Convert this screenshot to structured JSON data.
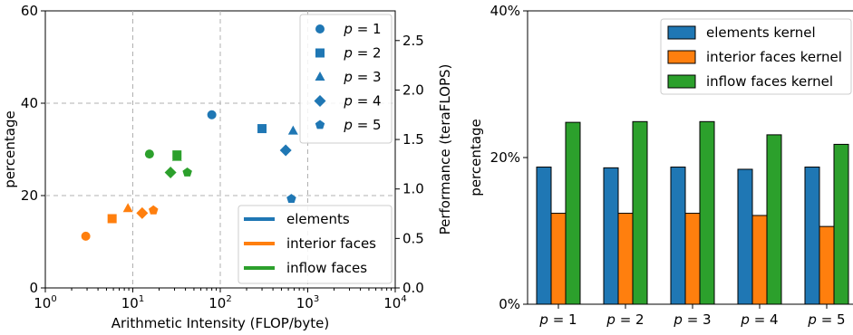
{
  "chart_data": [
    {
      "type": "scatter",
      "xlabel": "Arithmetic Intensity (FLOP/byte)",
      "ylabel": "percentage",
      "y2label": "Performance (teraFLOPS)",
      "xscale": "log",
      "xlim": [
        1,
        10000
      ],
      "ylim": [
        0,
        60
      ],
      "y2lim": [
        0,
        2.8
      ],
      "xticks": [
        {
          "value": 1,
          "mant": "10",
          "exp": "0"
        },
        {
          "value": 10,
          "mant": "10",
          "exp": "1"
        },
        {
          "value": 100,
          "mant": "10",
          "exp": "2"
        },
        {
          "value": 1000,
          "mant": "10",
          "exp": "3"
        },
        {
          "value": 10000,
          "mant": "10",
          "exp": "4"
        }
      ],
      "yticks": [
        {
          "value": 0,
          "label": "0"
        },
        {
          "value": 20,
          "label": "20"
        },
        {
          "value": 40,
          "label": "40"
        },
        {
          "value": 60,
          "label": "60"
        }
      ],
      "y2ticks": [
        {
          "value": 0.0,
          "label": "0.0"
        },
        {
          "value": 0.5,
          "label": "0.5"
        },
        {
          "value": 1.0,
          "label": "1.0"
        },
        {
          "value": 1.5,
          "label": "1.5"
        },
        {
          "value": 2.0,
          "label": "2.0"
        },
        {
          "value": 2.5,
          "label": "2.5"
        }
      ],
      "grid": true,
      "marker_legend": {
        "placement": "top-right",
        "entries": [
          {
            "label": "p = 1",
            "marker": "circle"
          },
          {
            "label": "p = 2",
            "marker": "square"
          },
          {
            "label": "p = 3",
            "marker": "triangle"
          },
          {
            "label": "p = 4",
            "marker": "diamond"
          },
          {
            "label": "p = 5",
            "marker": "pentagon"
          }
        ]
      },
      "color_legend": {
        "placement": "bottom-right",
        "entries": [
          {
            "label": "elements",
            "color": "#1f77b4"
          },
          {
            "label": "interior faces",
            "color": "#ff7f0e"
          },
          {
            "label": "inflow faces",
            "color": "#2ca02c"
          }
        ]
      },
      "series": [
        {
          "name": "elements",
          "color": "#1f77b4",
          "points": [
            {
              "p": 1,
              "x": 80,
              "y": 37.5
            },
            {
              "p": 2,
              "x": 300,
              "y": 34.5
            },
            {
              "p": 3,
              "x": 680,
              "y": 34
            },
            {
              "p": 4,
              "x": 560,
              "y": 29.8
            },
            {
              "p": 5,
              "x": 650,
              "y": 19.3
            }
          ]
        },
        {
          "name": "interior faces",
          "color": "#ff7f0e",
          "points": [
            {
              "p": 1,
              "x": 2.9,
              "y": 11.2
            },
            {
              "p": 2,
              "x": 5.8,
              "y": 15
            },
            {
              "p": 3,
              "x": 8.8,
              "y": 17.2
            },
            {
              "p": 4,
              "x": 12.8,
              "y": 16.2
            },
            {
              "p": 5,
              "x": 17.2,
              "y": 16.8
            }
          ]
        },
        {
          "name": "inflow faces",
          "color": "#2ca02c",
          "points": [
            {
              "p": 1,
              "x": 15.5,
              "y": 29
            },
            {
              "p": 2,
              "x": 32,
              "y": 28.8
            },
            {
              "p": 3,
              "x": 32,
              "y": 28.3
            },
            {
              "p": 4,
              "x": 27,
              "y": 25
            },
            {
              "p": 5,
              "x": 42,
              "y": 25
            }
          ]
        }
      ]
    },
    {
      "type": "bar",
      "ylabel": "percentage",
      "ylim": [
        0,
        40
      ],
      "yticks": [
        {
          "value": 0,
          "label": "0%"
        },
        {
          "value": 20,
          "label": "20%"
        },
        {
          "value": 40,
          "label": "40%"
        }
      ],
      "categories": [
        "p = 1",
        "p = 2",
        "p = 3",
        "p = 4",
        "p = 5"
      ],
      "legend": {
        "placement": "top-right"
      },
      "series": [
        {
          "name": "elements kernel",
          "color": "#1f77b4",
          "values": [
            18.7,
            18.6,
            18.7,
            18.4,
            18.7
          ]
        },
        {
          "name": "interior faces kernel",
          "color": "#ff7f0e",
          "values": [
            12.4,
            12.4,
            12.4,
            12.1,
            10.6
          ]
        },
        {
          "name": "inflow faces kernel",
          "color": "#2ca02c",
          "values": [
            24.8,
            24.9,
            24.9,
            23.1,
            21.8
          ]
        }
      ]
    }
  ]
}
